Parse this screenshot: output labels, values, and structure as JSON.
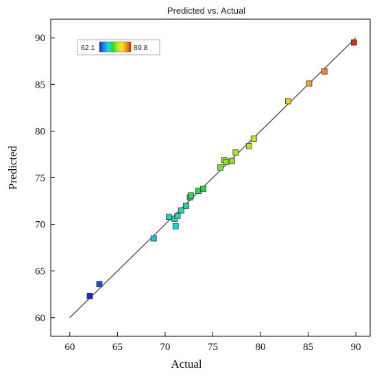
{
  "chart_data": {
    "type": "scatter",
    "title": "Predicted vs. Actual",
    "xlabel": "Actual",
    "ylabel": "Predicted",
    "xlim": [
      58.0,
      91.5
    ],
    "ylim": [
      58.0,
      92.0
    ],
    "x_ticks": [
      60,
      65,
      70,
      75,
      80,
      85,
      90
    ],
    "y_ticks": [
      60,
      65,
      70,
      75,
      80,
      85,
      90
    ],
    "reference_line": {
      "from": [
        60,
        60
      ],
      "to": [
        90,
        90
      ]
    },
    "color_scale": {
      "min": 62.1,
      "max": 89.8,
      "min_label": "62.1",
      "max_label": "89.8",
      "colors": [
        "#1a23c8",
        "#1e8ee0",
        "#20d7d7",
        "#2fd33a",
        "#b7e524",
        "#f5e21f",
        "#f0951e",
        "#d92016"
      ]
    },
    "legend_position": "top-left",
    "grid": false,
    "points": [
      {
        "x": 62.1,
        "y": 62.3
      },
      {
        "x": 63.1,
        "y": 63.6
      },
      {
        "x": 68.8,
        "y": 68.5
      },
      {
        "x": 70.4,
        "y": 70.8
      },
      {
        "x": 71.0,
        "y": 70.6
      },
      {
        "x": 71.1,
        "y": 69.8
      },
      {
        "x": 71.3,
        "y": 70.9
      },
      {
        "x": 71.7,
        "y": 71.5
      },
      {
        "x": 72.2,
        "y": 72.0
      },
      {
        "x": 72.6,
        "y": 72.9
      },
      {
        "x": 72.7,
        "y": 73.1
      },
      {
        "x": 73.5,
        "y": 73.6
      },
      {
        "x": 74.0,
        "y": 73.8
      },
      {
        "x": 75.8,
        "y": 76.1
      },
      {
        "x": 76.2,
        "y": 76.9
      },
      {
        "x": 76.4,
        "y": 76.7
      },
      {
        "x": 77.0,
        "y": 76.8
      },
      {
        "x": 77.4,
        "y": 77.7
      },
      {
        "x": 78.8,
        "y": 78.4
      },
      {
        "x": 79.3,
        "y": 79.2
      },
      {
        "x": 82.9,
        "y": 83.2
      },
      {
        "x": 85.1,
        "y": 85.1
      },
      {
        "x": 86.7,
        "y": 86.4
      },
      {
        "x": 89.8,
        "y": 89.5
      }
    ]
  }
}
